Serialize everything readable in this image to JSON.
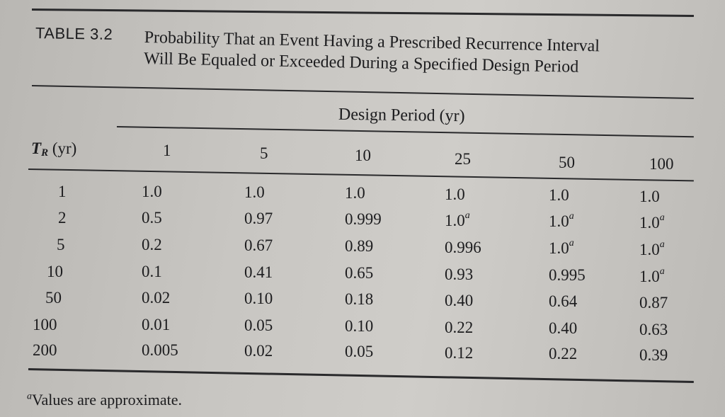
{
  "table": {
    "label": "TABLE 3.2",
    "title_line1": "Probability That an Event Having a Prescribed Recurrence Interval",
    "title_line2": "Will Be Equaled or Exceeded During a Specified Design Period",
    "spanner": "Design Period (yr)",
    "row_header_symbol": "T",
    "row_header_subscript": "R",
    "row_header_unit": " (yr)",
    "columns": [
      "1",
      "5",
      "10",
      "25",
      "50",
      "100"
    ],
    "footnote_marker": "a",
    "rows": [
      {
        "tr": "1",
        "cells": [
          {
            "v": "1.0",
            "fn": ""
          },
          {
            "v": "1.0",
            "fn": ""
          },
          {
            "v": "1.0",
            "fn": ""
          },
          {
            "v": "1.0",
            "fn": ""
          },
          {
            "v": "1.0",
            "fn": ""
          },
          {
            "v": "1.0",
            "fn": ""
          }
        ]
      },
      {
        "tr": "2",
        "cells": [
          {
            "v": "0.5",
            "fn": ""
          },
          {
            "v": "0.97",
            "fn": ""
          },
          {
            "v": "0.999",
            "fn": ""
          },
          {
            "v": "1.0",
            "fn": "a"
          },
          {
            "v": "1.0",
            "fn": "a"
          },
          {
            "v": "1.0",
            "fn": "a"
          }
        ]
      },
      {
        "tr": "5",
        "cells": [
          {
            "v": "0.2",
            "fn": ""
          },
          {
            "v": "0.67",
            "fn": ""
          },
          {
            "v": "0.89",
            "fn": ""
          },
          {
            "v": "0.996",
            "fn": ""
          },
          {
            "v": "1.0",
            "fn": "a"
          },
          {
            "v": "1.0",
            "fn": "a"
          }
        ]
      },
      {
        "tr": "10",
        "cells": [
          {
            "v": "0.1",
            "fn": ""
          },
          {
            "v": "0.41",
            "fn": ""
          },
          {
            "v": "0.65",
            "fn": ""
          },
          {
            "v": "0.93",
            "fn": ""
          },
          {
            "v": "0.995",
            "fn": ""
          },
          {
            "v": "1.0",
            "fn": "a"
          }
        ]
      },
      {
        "tr": "50",
        "cells": [
          {
            "v": "0.02",
            "fn": ""
          },
          {
            "v": "0.10",
            "fn": ""
          },
          {
            "v": "0.18",
            "fn": ""
          },
          {
            "v": "0.40",
            "fn": ""
          },
          {
            "v": "0.64",
            "fn": ""
          },
          {
            "v": "0.87",
            "fn": ""
          }
        ]
      },
      {
        "tr": "100",
        "cells": [
          {
            "v": "0.01",
            "fn": ""
          },
          {
            "v": "0.05",
            "fn": ""
          },
          {
            "v": "0.10",
            "fn": ""
          },
          {
            "v": "0.22",
            "fn": ""
          },
          {
            "v": "0.40",
            "fn": ""
          },
          {
            "v": "0.63",
            "fn": ""
          }
        ]
      },
      {
        "tr": "200",
        "cells": [
          {
            "v": "0.005",
            "fn": ""
          },
          {
            "v": "0.02",
            "fn": ""
          },
          {
            "v": "0.05",
            "fn": ""
          },
          {
            "v": "0.12",
            "fn": ""
          },
          {
            "v": "0.22",
            "fn": ""
          },
          {
            "v": "0.39",
            "fn": ""
          }
        ]
      }
    ],
    "footnote_text": "Values are approximate."
  },
  "colors": {
    "ink": "#1c1c1e",
    "paper": "#c8c6c2"
  }
}
